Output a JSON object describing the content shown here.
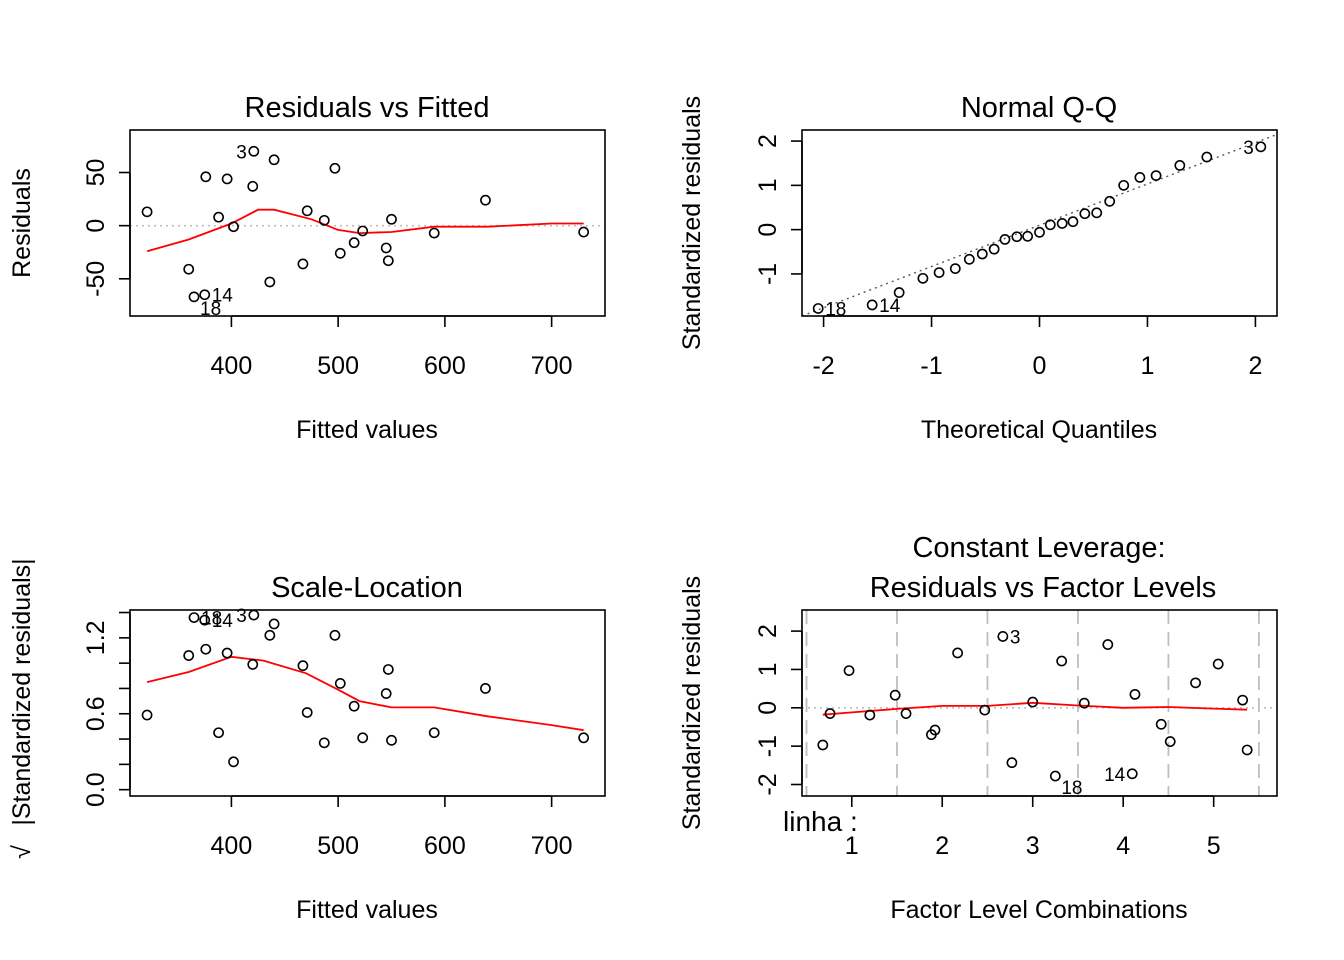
{
  "colors": {
    "smooth": "#ff0000",
    "reference": "#bebebe",
    "points": "#000000"
  },
  "overlay_label": "linha :",
  "chart_data": [
    {
      "type": "scatter",
      "title": "Residuals vs Fitted",
      "xlabel": "Fitted values",
      "ylabel": "Residuals",
      "xlim": [
        305,
        750
      ],
      "ylim": [
        -85,
        90
      ],
      "xticks": [
        400,
        500,
        600,
        700
      ],
      "xtick_labels": [
        "400",
        "500",
        "600",
        "700"
      ],
      "yticks": [
        -50,
        0,
        50
      ],
      "ytick_labels": [
        "-50",
        "0",
        "50"
      ],
      "points": [
        {
          "x": 321,
          "y": 13
        },
        {
          "x": 360,
          "y": -41
        },
        {
          "x": 365,
          "y": -67
        },
        {
          "x": 375,
          "y": -65
        },
        {
          "x": 376,
          "y": 46
        },
        {
          "x": 388,
          "y": 8
        },
        {
          "x": 396,
          "y": 44
        },
        {
          "x": 402,
          "y": -1
        },
        {
          "x": 420,
          "y": 37
        },
        {
          "x": 421,
          "y": 70
        },
        {
          "x": 436,
          "y": -53
        },
        {
          "x": 440,
          "y": 62
        },
        {
          "x": 467,
          "y": -36
        },
        {
          "x": 471,
          "y": 14
        },
        {
          "x": 487,
          "y": 5
        },
        {
          "x": 497,
          "y": 54
        },
        {
          "x": 502,
          "y": -26
        },
        {
          "x": 515,
          "y": -16
        },
        {
          "x": 523,
          "y": -5
        },
        {
          "x": 545,
          "y": -21
        },
        {
          "x": 547,
          "y": -33
        },
        {
          "x": 550,
          "y": 6
        },
        {
          "x": 590,
          "y": -7
        },
        {
          "x": 638,
          "y": 24
        },
        {
          "x": 730,
          "y": -6
        }
      ],
      "smooth": [
        [
          321,
          -24
        ],
        [
          360,
          -13
        ],
        [
          400,
          2
        ],
        [
          425,
          15
        ],
        [
          440,
          15
        ],
        [
          475,
          6
        ],
        [
          500,
          -4
        ],
        [
          520,
          -7
        ],
        [
          550,
          -6
        ],
        [
          590,
          -1
        ],
        [
          640,
          -1
        ],
        [
          700,
          2
        ],
        [
          730,
          2
        ]
      ],
      "refline_y": 0,
      "annotations": [
        {
          "label": "3",
          "x": 421,
          "y": 70,
          "side": "left"
        },
        {
          "label": "18",
          "x": 365,
          "y": -67,
          "side": "below-right"
        },
        {
          "label": "14",
          "x": 375,
          "y": -65,
          "side": "right"
        }
      ]
    },
    {
      "type": "scatter",
      "title": "Normal Q-Q",
      "xlabel": "Theoretical Quantiles",
      "ylabel": "Standardized residuals",
      "xlim": [
        -2.2,
        2.2
      ],
      "ylim": [
        -1.95,
        2.25
      ],
      "xticks": [
        -2,
        -1,
        0,
        1,
        2
      ],
      "xtick_labels": [
        "-2",
        "-1",
        "0",
        "1",
        "2"
      ],
      "yticks": [
        -1,
        0,
        1,
        2
      ],
      "ytick_labels": [
        "-1",
        "0",
        "1",
        "2"
      ],
      "points": [
        {
          "x": -2.05,
          "y": -1.78
        },
        {
          "x": -1.55,
          "y": -1.7
        },
        {
          "x": -1.3,
          "y": -1.42
        },
        {
          "x": -1.08,
          "y": -1.1
        },
        {
          "x": -0.93,
          "y": -0.97
        },
        {
          "x": -0.78,
          "y": -0.88
        },
        {
          "x": -0.65,
          "y": -0.67
        },
        {
          "x": -0.53,
          "y": -0.55
        },
        {
          "x": -0.42,
          "y": -0.44
        },
        {
          "x": -0.32,
          "y": -0.22
        },
        {
          "x": -0.21,
          "y": -0.16
        },
        {
          "x": -0.11,
          "y": -0.15
        },
        {
          "x": 0.0,
          "y": -0.06
        },
        {
          "x": 0.1,
          "y": 0.11
        },
        {
          "x": 0.21,
          "y": 0.14
        },
        {
          "x": 0.31,
          "y": 0.18
        },
        {
          "x": 0.42,
          "y": 0.36
        },
        {
          "x": 0.53,
          "y": 0.38
        },
        {
          "x": 0.65,
          "y": 0.64
        },
        {
          "x": 0.78,
          "y": 1.0
        },
        {
          "x": 0.93,
          "y": 1.18
        },
        {
          "x": 1.08,
          "y": 1.22
        },
        {
          "x": 1.3,
          "y": 1.45
        },
        {
          "x": 1.55,
          "y": 1.64
        },
        {
          "x": 2.05,
          "y": 1.87
        }
      ],
      "qqline": [
        [
          -2.2,
          -1.95
        ],
        [
          2.2,
          2.15
        ]
      ],
      "annotations": [
        {
          "label": "3",
          "x": 2.05,
          "y": 1.87,
          "side": "left"
        },
        {
          "label": "18",
          "x": -2.05,
          "y": -1.78,
          "side": "right"
        },
        {
          "label": "14",
          "x": -1.55,
          "y": -1.7,
          "side": "right"
        }
      ]
    },
    {
      "type": "scatter",
      "title": "Scale-Location",
      "xlabel": "Fitted values",
      "ylabel_radical": "√",
      "ylabel": "|Standardized residuals|",
      "xlim": [
        305,
        750
      ],
      "ylim": [
        -0.05,
        1.42
      ],
      "xticks": [
        400,
        500,
        600,
        700
      ],
      "xtick_labels": [
        "400",
        "500",
        "600",
        "700"
      ],
      "yticks": [
        0.0,
        0.2,
        0.4,
        0.6,
        0.8,
        1.0,
        1.2,
        1.4
      ],
      "ytick_labels": [
        "0.0",
        "",
        "",
        "0.6",
        "",
        "",
        "1.2",
        ""
      ],
      "points": [
        {
          "x": 321,
          "y": 0.59
        },
        {
          "x": 360,
          "y": 1.06
        },
        {
          "x": 365,
          "y": 1.36
        },
        {
          "x": 375,
          "y": 1.34
        },
        {
          "x": 376,
          "y": 1.11
        },
        {
          "x": 388,
          "y": 0.45
        },
        {
          "x": 396,
          "y": 1.08
        },
        {
          "x": 402,
          "y": 0.22
        },
        {
          "x": 420,
          "y": 0.99
        },
        {
          "x": 421,
          "y": 1.38
        },
        {
          "x": 436,
          "y": 1.22
        },
        {
          "x": 440,
          "y": 1.31
        },
        {
          "x": 467,
          "y": 0.98
        },
        {
          "x": 471,
          "y": 0.61
        },
        {
          "x": 487,
          "y": 0.37
        },
        {
          "x": 497,
          "y": 1.22
        },
        {
          "x": 502,
          "y": 0.84
        },
        {
          "x": 515,
          "y": 0.66
        },
        {
          "x": 523,
          "y": 0.41
        },
        {
          "x": 545,
          "y": 0.76
        },
        {
          "x": 547,
          "y": 0.95
        },
        {
          "x": 550,
          "y": 0.39
        },
        {
          "x": 590,
          "y": 0.45
        },
        {
          "x": 638,
          "y": 0.8
        },
        {
          "x": 730,
          "y": 0.41
        }
      ],
      "smooth": [
        [
          321,
          0.85
        ],
        [
          360,
          0.93
        ],
        [
          400,
          1.05
        ],
        [
          430,
          1.02
        ],
        [
          470,
          0.92
        ],
        [
          500,
          0.79
        ],
        [
          520,
          0.7
        ],
        [
          550,
          0.65
        ],
        [
          590,
          0.65
        ],
        [
          640,
          0.58
        ],
        [
          700,
          0.51
        ],
        [
          730,
          0.47
        ]
      ],
      "annotations": [
        {
          "label": "3",
          "x": 421,
          "y": 1.38,
          "side": "left"
        },
        {
          "label": "18",
          "x": 365,
          "y": 1.36,
          "side": "right"
        },
        {
          "label": "14",
          "x": 375,
          "y": 1.34,
          "side": "right"
        }
      ]
    },
    {
      "type": "scatter",
      "title": "Constant Leverage:",
      "subtitle": "Residuals vs Factor Levels",
      "xlabel": "Factor Level Combinations",
      "ylabel": "Standardized residuals",
      "xlim": [
        0.45,
        5.7
      ],
      "ylim": [
        -2.3,
        2.55
      ],
      "xticks": [
        1,
        2,
        3,
        4,
        5
      ],
      "xtick_labels": [
        "1",
        "2",
        "3",
        "4",
        "5"
      ],
      "yticks": [
        -2,
        -1,
        0,
        1,
        2
      ],
      "ytick_labels": [
        "-2",
        "-1",
        "0",
        "1",
        "2"
      ],
      "group_boundaries": [
        0.5,
        1.5,
        2.5,
        3.5,
        4.5,
        5.5
      ],
      "points": [
        {
          "x": 0.68,
          "y": -0.97
        },
        {
          "x": 0.76,
          "y": -0.15
        },
        {
          "x": 0.97,
          "y": 0.97
        },
        {
          "x": 1.2,
          "y": -0.19
        },
        {
          "x": 1.48,
          "y": 0.33
        },
        {
          "x": 1.6,
          "y": -0.15
        },
        {
          "x": 1.88,
          "y": -0.7
        },
        {
          "x": 1.92,
          "y": -0.58
        },
        {
          "x": 2.17,
          "y": 1.43
        },
        {
          "x": 2.47,
          "y": -0.06
        },
        {
          "x": 2.67,
          "y": 1.86
        },
        {
          "x": 2.77,
          "y": -1.43
        },
        {
          "x": 3.0,
          "y": 0.15
        },
        {
          "x": 3.25,
          "y": -1.78
        },
        {
          "x": 3.32,
          "y": 1.22
        },
        {
          "x": 3.57,
          "y": 0.12
        },
        {
          "x": 3.83,
          "y": 1.65
        },
        {
          "x": 4.1,
          "y": -1.72
        },
        {
          "x": 4.13,
          "y": 0.35
        },
        {
          "x": 4.42,
          "y": -0.43
        },
        {
          "x": 4.52,
          "y": -0.88
        },
        {
          "x": 4.8,
          "y": 0.65
        },
        {
          "x": 5.05,
          "y": 1.14
        },
        {
          "x": 5.32,
          "y": 0.2
        },
        {
          "x": 5.37,
          "y": -1.1
        }
      ],
      "smooth": [
        [
          0.68,
          -0.18
        ],
        [
          1.0,
          -0.12
        ],
        [
          1.5,
          -0.03
        ],
        [
          2.0,
          0.05
        ],
        [
          2.5,
          0.05
        ],
        [
          3.0,
          0.13
        ],
        [
          3.5,
          0.06
        ],
        [
          4.0,
          0.0
        ],
        [
          4.5,
          0.02
        ],
        [
          5.0,
          -0.02
        ],
        [
          5.37,
          -0.05
        ]
      ],
      "refline_y": 0,
      "annotations": [
        {
          "label": "3",
          "x": 2.67,
          "y": 1.86,
          "side": "right"
        },
        {
          "label": "18",
          "x": 3.25,
          "y": -1.78,
          "side": "below-right"
        },
        {
          "label": "14",
          "x": 4.1,
          "y": -1.72,
          "side": "left"
        }
      ]
    }
  ]
}
